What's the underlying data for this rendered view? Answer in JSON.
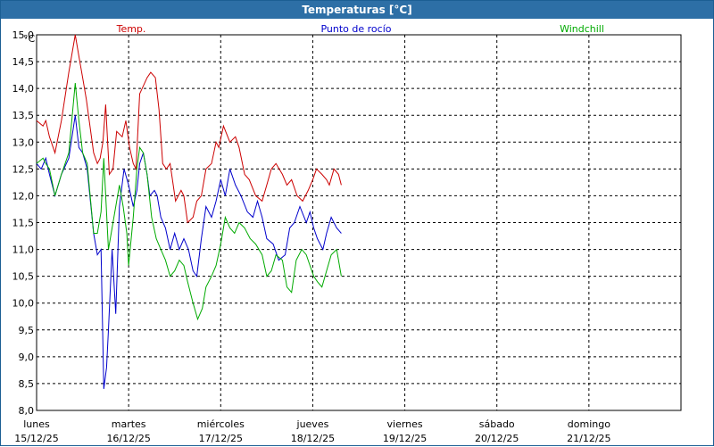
{
  "window": {
    "title": "Temperaturas [°C]"
  },
  "chart_data": {
    "type": "line",
    "title": "Temperaturas [°C]",
    "ylabel": "°C",
    "ylim": [
      8.0,
      15.0
    ],
    "yticks": [
      "8,0",
      "8,5",
      "9,0",
      "9,5",
      "10,0",
      "10,5",
      "11,0",
      "11,5",
      "12,0",
      "12,5",
      "13,0",
      "13,5",
      "14,0",
      "14,5",
      "15,0"
    ],
    "xlim": [
      0,
      7
    ],
    "days": [
      {
        "name": "lunes",
        "date": "15/12/25"
      },
      {
        "name": "martes",
        "date": "16/12/25"
      },
      {
        "name": "miércoles",
        "date": "17/12/25"
      },
      {
        "name": "jueves",
        "date": "18/12/25"
      },
      {
        "name": "viernes",
        "date": "19/12/25"
      },
      {
        "name": "sábado",
        "date": "20/12/25"
      },
      {
        "name": "domingo",
        "date": "21/12/25"
      }
    ],
    "grid": true,
    "series": [
      {
        "name": "Temp.",
        "color": "#cc0000",
        "x": [
          0,
          0.07,
          0.1,
          0.14,
          0.2,
          0.27,
          0.35,
          0.42,
          0.46,
          0.5,
          0.54,
          0.62,
          0.66,
          0.69,
          0.72,
          0.75,
          0.79,
          0.83,
          0.87,
          0.93,
          0.97,
          1.01,
          1.05,
          1.08,
          1.12,
          1.2,
          1.24,
          1.29,
          1.33,
          1.37,
          1.41,
          1.45,
          1.51,
          1.57,
          1.6,
          1.64,
          1.7,
          1.74,
          1.79,
          1.84,
          1.9,
          1.95,
          1.98,
          2.03,
          2.1,
          2.16,
          2.2,
          2.26,
          2.31,
          2.38,
          2.45,
          2.5,
          2.55,
          2.6,
          2.67,
          2.72,
          2.77,
          2.83,
          2.89,
          2.95,
          3.0,
          3.04,
          3.1,
          3.15,
          3.18,
          3.23,
          3.28,
          3.31
        ],
        "values": [
          13.4,
          13.3,
          13.4,
          13.1,
          12.8,
          13.4,
          14.3,
          15.0,
          14.6,
          14.2,
          13.8,
          12.8,
          12.6,
          12.7,
          13.0,
          13.7,
          12.4,
          12.5,
          13.2,
          13.1,
          13.4,
          12.9,
          12.6,
          12.5,
          13.9,
          14.2,
          14.3,
          14.2,
          13.6,
          12.6,
          12.5,
          12.6,
          11.9,
          12.1,
          12.0,
          11.5,
          11.6,
          11.9,
          12.0,
          12.5,
          12.6,
          13.0,
          12.9,
          13.3,
          13.0,
          13.1,
          12.9,
          12.4,
          12.3,
          12.0,
          11.9,
          12.2,
          12.5,
          12.6,
          12.4,
          12.2,
          12.3,
          12.0,
          11.9,
          12.1,
          12.3,
          12.5,
          12.4,
          12.3,
          12.2,
          12.5,
          12.4,
          12.2
        ]
      },
      {
        "name": "Punto de rocío",
        "color": "#0000cc",
        "x": [
          0,
          0.05,
          0.1,
          0.14,
          0.2,
          0.27,
          0.35,
          0.42,
          0.46,
          0.5,
          0.55,
          0.62,
          0.66,
          0.7,
          0.73,
          0.76,
          0.78,
          0.82,
          0.86,
          0.9,
          0.95,
          1.0,
          1.05,
          1.09,
          1.12,
          1.16,
          1.2,
          1.23,
          1.28,
          1.31,
          1.35,
          1.4,
          1.45,
          1.5,
          1.55,
          1.6,
          1.65,
          1.7,
          1.74,
          1.79,
          1.84,
          1.9,
          1.95,
          2.0,
          2.05,
          2.1,
          2.16,
          2.22,
          2.29,
          2.35,
          2.4,
          2.45,
          2.5,
          2.57,
          2.63,
          2.7,
          2.75,
          2.8,
          2.86,
          2.93,
          2.97,
          3.01,
          3.05,
          3.11,
          3.15,
          3.2,
          3.26,
          3.31
        ],
        "values": [
          12.6,
          12.5,
          12.7,
          12.4,
          12.0,
          12.4,
          12.7,
          13.5,
          12.9,
          12.8,
          12.5,
          11.3,
          10.9,
          11.0,
          8.4,
          8.8,
          9.5,
          11.0,
          9.8,
          11.8,
          12.5,
          12.2,
          11.8,
          12.1,
          12.6,
          12.8,
          12.4,
          12.0,
          12.1,
          12.0,
          11.6,
          11.4,
          11.0,
          11.3,
          11.0,
          11.2,
          11.0,
          10.6,
          10.5,
          11.2,
          11.8,
          11.6,
          11.9,
          12.3,
          12.0,
          12.5,
          12.2,
          12.0,
          11.7,
          11.6,
          11.9,
          11.6,
          11.2,
          11.1,
          10.8,
          10.9,
          11.4,
          11.5,
          11.8,
          11.5,
          11.7,
          11.4,
          11.2,
          11.0,
          11.3,
          11.6,
          11.4,
          11.3
        ]
      },
      {
        "name": "Windchill",
        "color": "#00aa00",
        "x": [
          0,
          0.07,
          0.1,
          0.14,
          0.2,
          0.27,
          0.35,
          0.42,
          0.46,
          0.5,
          0.55,
          0.62,
          0.66,
          0.7,
          0.73,
          0.78,
          0.82,
          0.86,
          0.9,
          0.94,
          0.98,
          1.0,
          1.05,
          1.09,
          1.12,
          1.16,
          1.2,
          1.25,
          1.3,
          1.35,
          1.4,
          1.45,
          1.5,
          1.55,
          1.6,
          1.64,
          1.7,
          1.75,
          1.8,
          1.84,
          1.9,
          1.95,
          2.0,
          2.05,
          2.1,
          2.15,
          2.2,
          2.26,
          2.32,
          2.38,
          2.45,
          2.5,
          2.55,
          2.6,
          2.67,
          2.72,
          2.77,
          2.82,
          2.88,
          2.93,
          2.97,
          3.01,
          3.05,
          3.1,
          3.15,
          3.2,
          3.26,
          3.31
        ],
        "values": [
          12.6,
          12.7,
          12.6,
          12.5,
          12.0,
          12.4,
          12.8,
          14.1,
          13.4,
          12.8,
          12.6,
          11.3,
          11.3,
          11.7,
          12.7,
          11.0,
          11.4,
          11.8,
          12.2,
          11.8,
          11.3,
          10.7,
          11.6,
          12.5,
          12.9,
          12.8,
          12.4,
          11.6,
          11.2,
          11.0,
          10.8,
          10.5,
          10.6,
          10.8,
          10.7,
          10.4,
          10.0,
          9.7,
          9.9,
          10.3,
          10.5,
          10.7,
          11.1,
          11.6,
          11.4,
          11.3,
          11.5,
          11.4,
          11.2,
          11.1,
          10.9,
          10.5,
          10.6,
          10.9,
          10.8,
          10.3,
          10.2,
          10.8,
          11.0,
          10.9,
          10.7,
          10.5,
          10.4,
          10.3,
          10.6,
          10.9,
          11.0,
          10.5
        ]
      }
    ]
  }
}
